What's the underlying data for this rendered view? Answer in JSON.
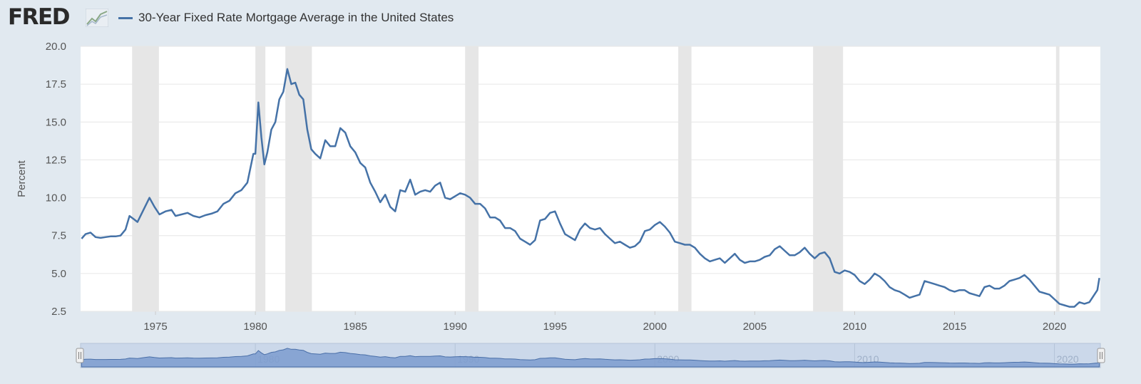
{
  "header": {
    "logo_text": "FRED",
    "legend_label": "30-Year Fixed Rate Mortgage Average in the United States"
  },
  "colors": {
    "page_background": "#e1e9f0",
    "plot_background": "#ffffff",
    "series_line": "#4572a7",
    "recession_band": "#e6e6e6",
    "gridline": "#e6e6e6",
    "navigator_fill": "#8ba7d3",
    "navigator_bg": "#cbd8ea"
  },
  "chart_data": {
    "type": "line",
    "title": "30-Year Fixed Rate Mortgage Average in the United States",
    "xlabel": "",
    "ylabel": "Percent",
    "xlim": [
      1971.25,
      2022.3
    ],
    "ylim": [
      2.5,
      20.0
    ],
    "x_ticks": [
      "1975",
      "1980",
      "1985",
      "1990",
      "1995",
      "2000",
      "2005",
      "2010",
      "2015",
      "2020"
    ],
    "y_ticks": [
      "2.5",
      "5.0",
      "7.5",
      "10.0",
      "12.5",
      "15.0",
      "17.5",
      "20.0"
    ],
    "grid": true,
    "legend_position": "top-left",
    "recessions": [
      [
        1973.83,
        1975.17
      ],
      [
        1980.0,
        1980.5
      ],
      [
        1981.5,
        1982.83
      ],
      [
        1990.5,
        1991.17
      ],
      [
        2001.17,
        2001.83
      ],
      [
        2007.92,
        2009.42
      ],
      [
        2020.08,
        2020.25
      ]
    ],
    "series": [
      {
        "name": "30-Year Fixed Rate Mortgage Average in the United States",
        "x": [
          1971.3,
          1971.5,
          1971.75,
          1972.0,
          1972.25,
          1972.5,
          1972.75,
          1973.0,
          1973.25,
          1973.5,
          1973.7,
          1973.9,
          1974.1,
          1974.4,
          1974.7,
          1974.95,
          1975.2,
          1975.5,
          1975.8,
          1976.0,
          1976.3,
          1976.6,
          1976.9,
          1977.2,
          1977.5,
          1977.8,
          1978.1,
          1978.4,
          1978.7,
          1979.0,
          1979.3,
          1979.6,
          1979.9,
          1980.0,
          1980.15,
          1980.3,
          1980.45,
          1980.6,
          1980.8,
          1981.0,
          1981.2,
          1981.4,
          1981.6,
          1981.8,
          1982.0,
          1982.2,
          1982.4,
          1982.6,
          1982.8,
          1983.0,
          1983.25,
          1983.5,
          1983.75,
          1984.0,
          1984.25,
          1984.5,
          1984.75,
          1985.0,
          1985.25,
          1985.5,
          1985.75,
          1986.0,
          1986.25,
          1986.5,
          1986.75,
          1987.0,
          1987.25,
          1987.5,
          1987.75,
          1988.0,
          1988.25,
          1988.5,
          1988.75,
          1989.0,
          1989.25,
          1989.5,
          1989.75,
          1990.0,
          1990.25,
          1990.5,
          1990.75,
          1991.0,
          1991.25,
          1991.5,
          1991.75,
          1992.0,
          1992.25,
          1992.5,
          1992.75,
          1993.0,
          1993.25,
          1993.5,
          1993.75,
          1994.0,
          1994.25,
          1994.5,
          1994.75,
          1995.0,
          1995.25,
          1995.5,
          1995.75,
          1996.0,
          1996.25,
          1996.5,
          1996.75,
          1997.0,
          1997.25,
          1997.5,
          1997.75,
          1998.0,
          1998.25,
          1998.5,
          1998.75,
          1999.0,
          1999.25,
          1999.5,
          1999.75,
          2000.0,
          2000.25,
          2000.5,
          2000.75,
          2001.0,
          2001.25,
          2001.5,
          2001.75,
          2002.0,
          2002.25,
          2002.5,
          2002.75,
          2003.0,
          2003.25,
          2003.5,
          2003.75,
          2004.0,
          2004.25,
          2004.5,
          2004.75,
          2005.0,
          2005.25,
          2005.5,
          2005.75,
          2006.0,
          2006.25,
          2006.5,
          2006.75,
          2007.0,
          2007.25,
          2007.5,
          2007.75,
          2008.0,
          2008.25,
          2008.5,
          2008.75,
          2009.0,
          2009.25,
          2009.5,
          2009.75,
          2010.0,
          2010.25,
          2010.5,
          2010.75,
          2011.0,
          2011.25,
          2011.5,
          2011.75,
          2012.0,
          2012.25,
          2012.5,
          2012.75,
          2013.0,
          2013.25,
          2013.5,
          2013.75,
          2014.0,
          2014.25,
          2014.5,
          2014.75,
          2015.0,
          2015.25,
          2015.5,
          2015.75,
          2016.0,
          2016.25,
          2016.5,
          2016.75,
          2017.0,
          2017.25,
          2017.5,
          2017.75,
          2018.0,
          2018.25,
          2018.5,
          2018.75,
          2019.0,
          2019.25,
          2019.5,
          2019.75,
          2020.0,
          2020.25,
          2020.5,
          2020.75,
          2021.0,
          2021.25,
          2021.5,
          2021.75,
          2022.0,
          2022.15,
          2022.25
        ],
        "values": [
          7.3,
          7.6,
          7.7,
          7.4,
          7.35,
          7.4,
          7.45,
          7.45,
          7.5,
          7.9,
          8.8,
          8.6,
          8.4,
          9.2,
          10.0,
          9.4,
          8.9,
          9.1,
          9.2,
          8.8,
          8.9,
          9.0,
          8.8,
          8.7,
          8.85,
          8.95,
          9.1,
          9.6,
          9.8,
          10.3,
          10.5,
          11.0,
          12.9,
          12.9,
          16.3,
          14.0,
          12.2,
          13.0,
          14.5,
          15.0,
          16.5,
          17.0,
          18.5,
          17.5,
          17.6,
          16.8,
          16.5,
          14.5,
          13.2,
          12.9,
          12.6,
          13.8,
          13.4,
          13.4,
          14.6,
          14.3,
          13.4,
          13.0,
          12.3,
          12.0,
          11.0,
          10.4,
          9.7,
          10.2,
          9.4,
          9.1,
          10.5,
          10.4,
          11.2,
          10.2,
          10.4,
          10.5,
          10.4,
          10.8,
          11.0,
          10.0,
          9.9,
          10.1,
          10.3,
          10.2,
          10.0,
          9.6,
          9.6,
          9.3,
          8.7,
          8.7,
          8.5,
          8.0,
          8.0,
          7.8,
          7.3,
          7.1,
          6.9,
          7.2,
          8.5,
          8.6,
          9.0,
          9.1,
          8.3,
          7.6,
          7.4,
          7.2,
          7.9,
          8.3,
          8.0,
          7.9,
          8.0,
          7.6,
          7.3,
          7.0,
          7.1,
          6.9,
          6.7,
          6.8,
          7.1,
          7.8,
          7.9,
          8.2,
          8.4,
          8.1,
          7.7,
          7.1,
          7.0,
          6.9,
          6.9,
          6.7,
          6.3,
          6.0,
          5.8,
          5.9,
          6.0,
          5.7,
          6.0,
          6.3,
          5.9,
          5.7,
          5.8,
          5.8,
          5.9,
          6.1,
          6.2,
          6.6,
          6.8,
          6.5,
          6.2,
          6.2,
          6.4,
          6.7,
          6.3,
          6.0,
          6.3,
          6.4,
          6.0,
          5.1,
          5.0,
          5.2,
          5.1,
          4.9,
          4.5,
          4.3,
          4.6,
          5.0,
          4.8,
          4.5,
          4.1,
          3.9,
          3.8,
          3.6,
          3.4,
          3.5,
          3.6,
          4.5,
          4.4,
          4.3,
          4.2,
          4.1,
          3.9,
          3.8,
          3.9,
          3.9,
          3.7,
          3.6,
          3.5,
          4.1,
          4.2,
          4.0,
          4.0,
          4.2,
          4.5,
          4.6,
          4.7,
          4.9,
          4.6,
          4.2,
          3.8,
          3.7,
          3.6,
          3.3,
          3.0,
          2.9,
          2.8,
          2.8,
          3.1,
          3.0,
          3.1,
          3.6,
          3.9,
          4.7
        ]
      }
    ]
  }
}
